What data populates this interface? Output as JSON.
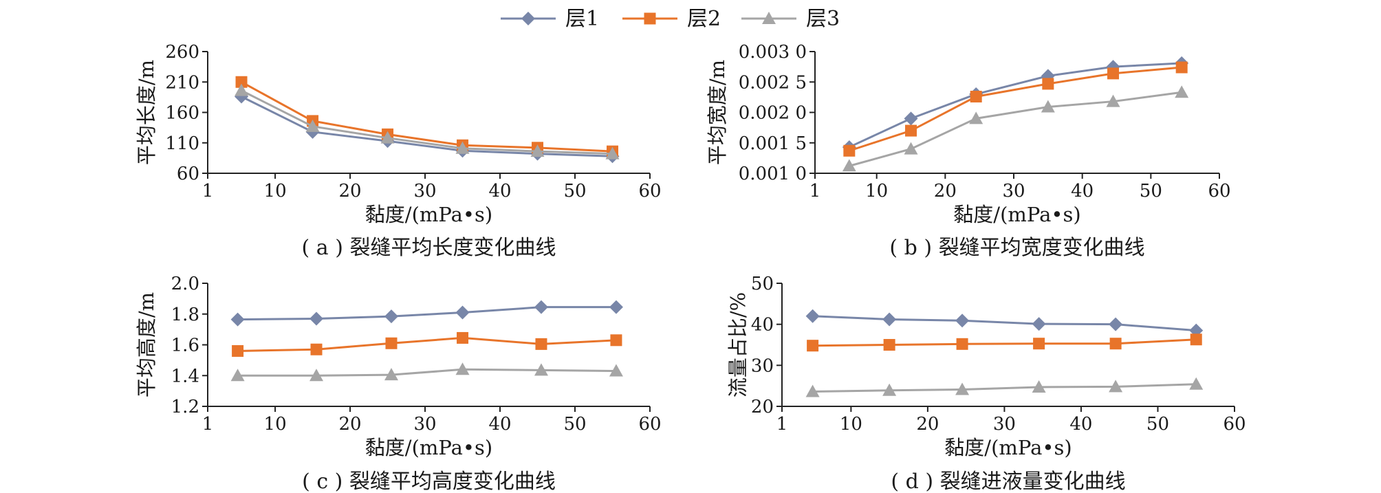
{
  "legend": {
    "items": [
      {
        "label": "层1",
        "color": "#7886a8",
        "marker": "diamond"
      },
      {
        "label": "层2",
        "color": "#e8742a",
        "marker": "square"
      },
      {
        "label": "层3",
        "color": "#a5a5a5",
        "marker": "triangle"
      }
    ]
  },
  "chart_data": [
    {
      "id": "a",
      "type": "line",
      "caption": "( a ) 裂缝平均长度变化曲线",
      "xlabel": "黏度/(mPa•s)",
      "ylabel": "平均长度/m",
      "xlim": [
        1,
        60
      ],
      "xticks": [
        "1",
        "10",
        "20",
        "30",
        "40",
        "50",
        "60"
      ],
      "ylim": [
        60,
        260
      ],
      "yticks": [
        "60",
        "110",
        "160",
        "210",
        "260"
      ],
      "x": [
        5.5,
        15,
        25,
        35,
        45,
        55
      ],
      "series": [
        {
          "name": "层1",
          "values": [
            186,
            128,
            113,
            97,
            92,
            88
          ]
        },
        {
          "name": "层2",
          "values": [
            210,
            146,
            124,
            106,
            102,
            96
          ]
        },
        {
          "name": "层3",
          "values": [
            196,
            137,
            118,
            101,
            96,
            92
          ]
        }
      ]
    },
    {
      "id": "b",
      "type": "line",
      "caption": "( b ) 裂缝平均宽度变化曲线",
      "xlabel": "黏度/(mPa•s)",
      "ylabel": "平均宽度/m",
      "xlim": [
        1,
        60
      ],
      "xticks": [
        "1",
        "10",
        "20",
        "30",
        "40",
        "50",
        "60"
      ],
      "ylim": [
        0.001,
        0.003
      ],
      "yticks": [
        "0.001 0",
        "0.001 5",
        "0.002 0",
        "0.002 5",
        "0.003 0"
      ],
      "x": [
        6,
        15,
        24.5,
        35,
        44.5,
        54.5
      ],
      "series": [
        {
          "name": "层1",
          "values": [
            0.00143,
            0.0019,
            0.0023,
            0.0026,
            0.00275,
            0.00281
          ]
        },
        {
          "name": "层2",
          "values": [
            0.00137,
            0.0017,
            0.00226,
            0.00247,
            0.00264,
            0.00274
          ]
        },
        {
          "name": "层3",
          "values": [
            0.00112,
            0.0014,
            0.0019,
            0.00209,
            0.00218,
            0.00233
          ]
        }
      ]
    },
    {
      "id": "c",
      "type": "line",
      "caption": "( c ) 裂缝平均高度变化曲线",
      "xlabel": "黏度/(mPa•s)",
      "ylabel": "平均高度/m",
      "xlim": [
        1,
        60
      ],
      "xticks": [
        "1",
        "10",
        "20",
        "30",
        "40",
        "50",
        "60"
      ],
      "ylim": [
        1.2,
        2.0
      ],
      "yticks": [
        "1.2",
        "1.4",
        "1.6",
        "1.8",
        "2.0"
      ],
      "x": [
        5,
        15.5,
        25.5,
        35,
        45.5,
        55.5
      ],
      "series": [
        {
          "name": "层1",
          "values": [
            1.765,
            1.77,
            1.785,
            1.81,
            1.845,
            1.845
          ]
        },
        {
          "name": "层2",
          "values": [
            1.56,
            1.57,
            1.61,
            1.645,
            1.605,
            1.63
          ]
        },
        {
          "name": "层3",
          "values": [
            1.4,
            1.4,
            1.405,
            1.44,
            1.435,
            1.43
          ]
        }
      ]
    },
    {
      "id": "d",
      "type": "line",
      "caption": "( d ) 裂缝进液量变化曲线",
      "xlabel": "黏度/(mPa•s)",
      "ylabel": "流量占比/%",
      "xlim": [
        1,
        60
      ],
      "xticks": [
        "1",
        "10",
        "20",
        "30",
        "40",
        "50",
        "60"
      ],
      "ylim": [
        20,
        50
      ],
      "yticks": [
        "20",
        "30",
        "40",
        "50"
      ],
      "x": [
        5,
        15,
        24.5,
        34.5,
        44.5,
        55
      ],
      "series": [
        {
          "name": "层1",
          "values": [
            42,
            41.2,
            40.9,
            40.1,
            40.0,
            38.5
          ]
        },
        {
          "name": "层2",
          "values": [
            34.8,
            35.0,
            35.2,
            35.3,
            35.3,
            36.3
          ]
        },
        {
          "name": "层3",
          "values": [
            23.6,
            23.9,
            24.1,
            24.7,
            24.8,
            25.4
          ]
        }
      ]
    }
  ]
}
